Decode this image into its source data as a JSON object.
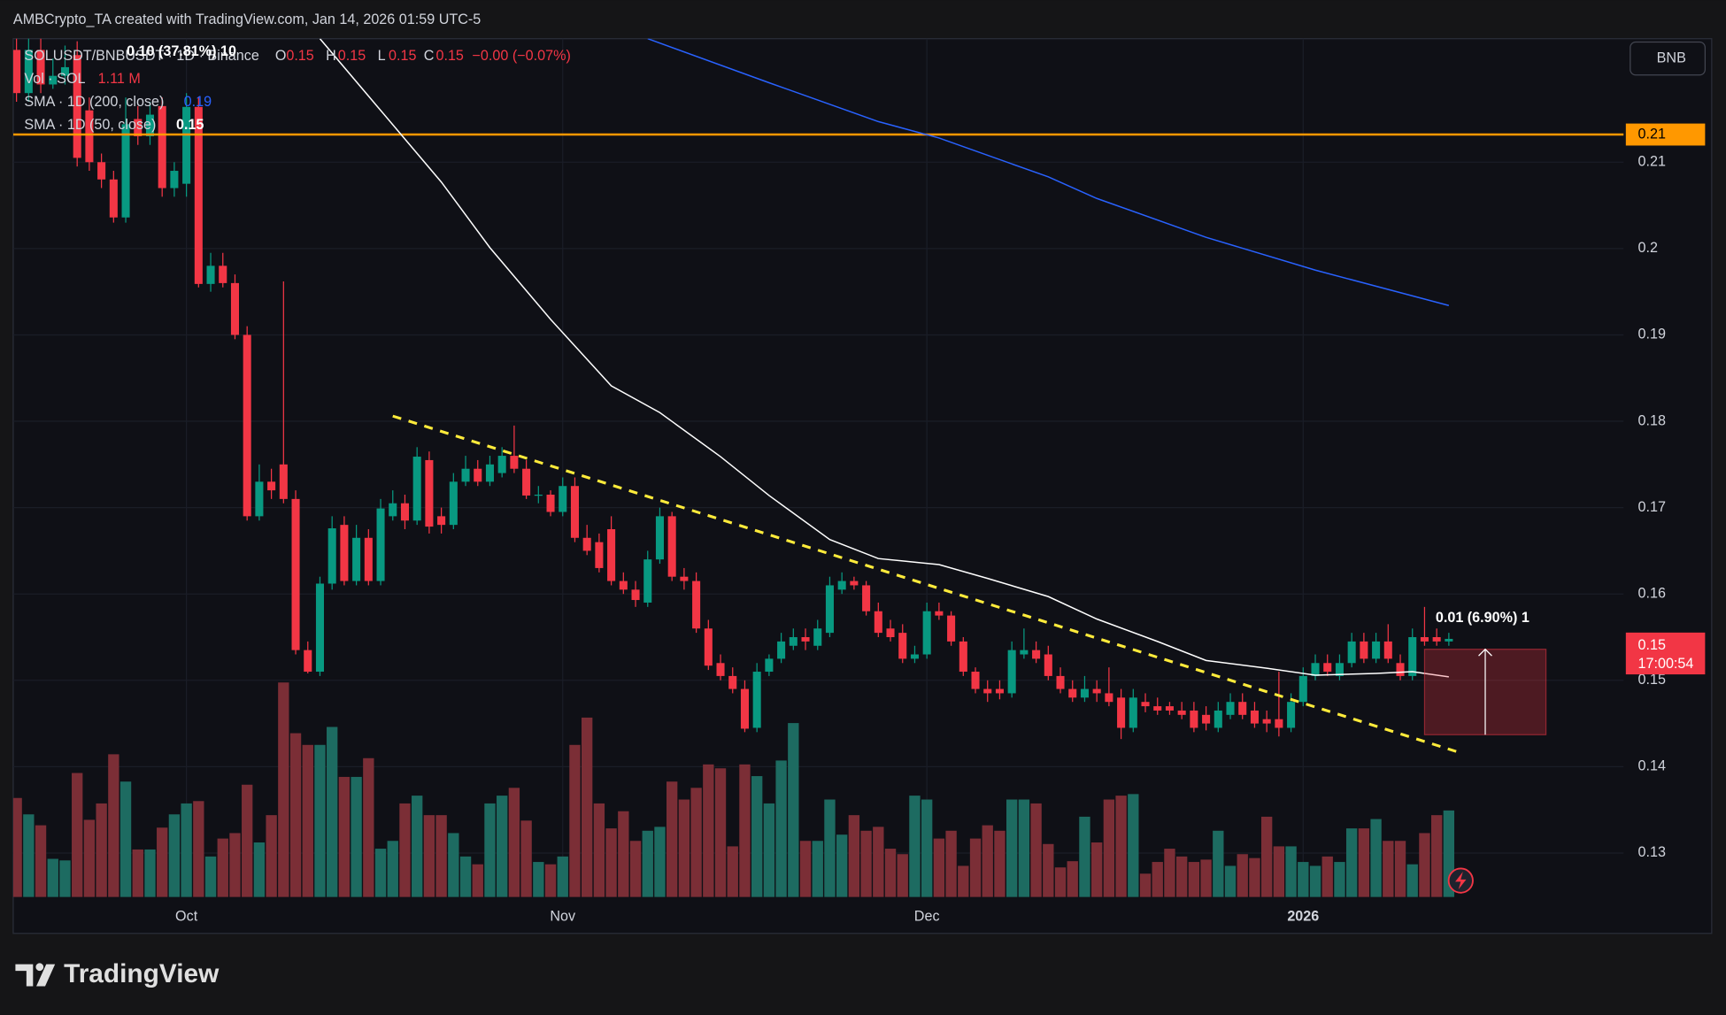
{
  "header": {
    "title": "AMBCrypto_TA created with TradingView.com, Jan 14, 2026 01:59 UTC-5"
  },
  "toolbar": {
    "symbol_button": "BNB"
  },
  "legend": {
    "symbol": "SOLUSDT/BNBUSDT · 1D · Binance",
    "overlay": "0.10 (37.81%) 10",
    "ohlc": [
      [
        "O",
        "0.15"
      ],
      [
        "H",
        "0.15"
      ],
      [
        "L",
        "0.15"
      ],
      [
        "C",
        "0.15"
      ]
    ],
    "change": "−0.00 (−0.07%)",
    "volume_label": "Vol · SOL",
    "volume_value": "1.11 M"
  },
  "footer": {
    "brand": "TradingView"
  },
  "chart_data": {
    "type": "candlestick",
    "xlim": [
      -0.27,
      132.4
    ],
    "xticks": [
      {
        "value": 14,
        "label": "Oct"
      },
      {
        "value": 45,
        "label": "Nov"
      },
      {
        "value": 75,
        "label": "Dec"
      },
      {
        "value": 106,
        "label": "2026"
      }
    ],
    "ylim": [
      0.1249,
      0.2243
    ],
    "yticks": [
      0.13,
      0.14,
      0.15,
      0.16,
      0.17,
      0.18,
      0.19,
      0.2,
      0.21
    ],
    "grid": true,
    "up_color": "#089981",
    "down_color": "#f23645",
    "volume_up_color": "#1d6b61",
    "volume_down_color": "#7b2e36",
    "volume_lim": [
      0,
      5.5
    ],
    "open": [
      0.223,
      0.218,
      0.223,
      0.219,
      0.22,
      0.2224,
      0.216,
      0.21,
      0.208,
      0.2036,
      0.215,
      0.213,
      0.2165,
      0.207,
      0.2075,
      0.2164,
      0.1959,
      0.198,
      0.196,
      0.19,
      0.169,
      0.173,
      0.175,
      0.171,
      0.1535,
      0.151,
      0.1612,
      0.168,
      0.1615,
      0.1665,
      0.1615,
      0.169,
      0.1705,
      0.1685,
      0.1755,
      0.169,
      0.168,
      0.173,
      0.1745,
      0.173,
      0.174,
      0.176,
      0.1745,
      0.1715,
      0.1715,
      0.1695,
      0.1725,
      0.1665,
      0.166,
      0.1675,
      0.1615,
      0.1605,
      0.159,
      0.164,
      0.169,
      0.162,
      0.1615,
      0.156,
      0.152,
      0.1505,
      0.149,
      0.1445,
      0.151,
      0.1525,
      0.154,
      0.155,
      0.154,
      0.1555,
      0.1605,
      0.1615,
      0.161,
      0.158,
      0.156,
      0.1555,
      0.1525,
      0.153,
      0.158,
      0.1575,
      0.1545,
      0.151,
      0.149,
      0.149,
      0.1485,
      0.153,
      0.1535,
      0.153,
      0.1505,
      0.149,
      0.148,
      0.149,
      0.1485,
      0.148,
      0.1445,
      0.1475,
      0.147,
      0.147,
      0.1465,
      0.1465,
      0.146,
      0.1445,
      0.146,
      0.1475,
      0.1465,
      0.1455,
      0.1455,
      0.1445,
      0.1475,
      0.1505,
      0.152,
      0.1505,
      0.152,
      0.1545,
      0.1525,
      0.1545,
      0.152,
      0.1505,
      0.155,
      0.155,
      0.1545
    ],
    "high": [
      0.225,
      0.2245,
      0.2245,
      0.222,
      0.2235,
      0.224,
      0.2175,
      0.211,
      0.209,
      0.2175,
      0.2165,
      0.217,
      0.2175,
      0.21,
      0.218,
      0.2175,
      0.1995,
      0.1995,
      0.197,
      0.191,
      0.175,
      0.1745,
      0.1962,
      0.172,
      0.1545,
      0.162,
      0.169,
      0.169,
      0.168,
      0.1675,
      0.171,
      0.172,
      0.1715,
      0.177,
      0.1765,
      0.17,
      0.174,
      0.176,
      0.1755,
      0.176,
      0.177,
      0.1795,
      0.1755,
      0.1725,
      0.172,
      0.1735,
      0.1735,
      0.168,
      0.167,
      0.169,
      0.1625,
      0.1615,
      0.165,
      0.17,
      0.1695,
      0.163,
      0.1625,
      0.157,
      0.153,
      0.1515,
      0.15,
      0.152,
      0.153,
      0.1555,
      0.156,
      0.156,
      0.157,
      0.162,
      0.1625,
      0.162,
      0.1615,
      0.159,
      0.157,
      0.1565,
      0.154,
      0.159,
      0.159,
      0.158,
      0.155,
      0.1515,
      0.15,
      0.15,
      0.1545,
      0.156,
      0.1545,
      0.154,
      0.1515,
      0.15,
      0.1505,
      0.15,
      0.1515,
      0.149,
      0.149,
      0.1485,
      0.148,
      0.1475,
      0.1475,
      0.1475,
      0.147,
      0.1475,
      0.1485,
      0.1485,
      0.1475,
      0.1465,
      0.151,
      0.1485,
      0.1515,
      0.153,
      0.153,
      0.153,
      0.1555,
      0.1555,
      0.1555,
      0.1565,
      0.153,
      0.156,
      0.1585,
      0.156,
      0.1555
    ],
    "low": [
      0.217,
      0.217,
      0.218,
      0.2185,
      0.219,
      0.2095,
      0.209,
      0.207,
      0.203,
      0.203,
      0.212,
      0.212,
      0.206,
      0.206,
      0.206,
      0.1955,
      0.195,
      0.1955,
      0.1895,
      0.1685,
      0.1685,
      0.171,
      0.1705,
      0.153,
      0.1508,
      0.1505,
      0.1605,
      0.161,
      0.161,
      0.161,
      0.161,
      0.1685,
      0.1675,
      0.168,
      0.167,
      0.167,
      0.1675,
      0.1725,
      0.1725,
      0.1725,
      0.1735,
      0.174,
      0.171,
      0.1705,
      0.169,
      0.169,
      0.166,
      0.1645,
      0.1625,
      0.161,
      0.16,
      0.1585,
      0.1585,
      0.1635,
      0.1615,
      0.1605,
      0.1555,
      0.1512,
      0.15,
      0.1485,
      0.144,
      0.144,
      0.1505,
      0.152,
      0.1535,
      0.1535,
      0.1535,
      0.155,
      0.16,
      0.1605,
      0.1575,
      0.155,
      0.1545,
      0.152,
      0.152,
      0.1525,
      0.157,
      0.154,
      0.1505,
      0.1485,
      0.1475,
      0.1478,
      0.148,
      0.1525,
      0.152,
      0.15,
      0.1485,
      0.1475,
      0.1475,
      0.1475,
      0.147,
      0.1432,
      0.144,
      0.1463,
      0.146,
      0.146,
      0.1455,
      0.144,
      0.1442,
      0.144,
      0.1455,
      0.1455,
      0.1445,
      0.144,
      0.1435,
      0.144,
      0.147,
      0.15,
      0.1505,
      0.15,
      0.1515,
      0.152,
      0.152,
      0.152,
      0.15,
      0.15,
      0.154,
      0.154,
      0.154
    ],
    "close": [
      0.218,
      0.223,
      0.219,
      0.22,
      0.221,
      0.2105,
      0.21,
      0.208,
      0.2036,
      0.2144,
      0.213,
      0.2155,
      0.207,
      0.209,
      0.2164,
      0.1959,
      0.198,
      0.196,
      0.19,
      0.169,
      0.173,
      0.172,
      0.171,
      0.1535,
      0.151,
      0.1612,
      0.1676,
      0.1615,
      0.1665,
      0.1615,
      0.1699,
      0.1705,
      0.1685,
      0.1759,
      0.1678,
      0.168,
      0.173,
      0.1745,
      0.173,
      0.175,
      0.176,
      0.1745,
      0.1714,
      0.1715,
      0.1695,
      0.1725,
      0.1665,
      0.165,
      0.163,
      0.1615,
      0.1605,
      0.1593,
      0.164,
      0.169,
      0.162,
      0.1615,
      0.156,
      0.1517,
      0.1505,
      0.149,
      0.1444,
      0.151,
      0.1525,
      0.1545,
      0.155,
      0.1545,
      0.156,
      0.161,
      0.1615,
      0.161,
      0.158,
      0.1555,
      0.155,
      0.1525,
      0.153,
      0.158,
      0.1575,
      0.1545,
      0.151,
      0.149,
      0.1485,
      0.1485,
      0.1535,
      0.1535,
      0.1525,
      0.1505,
      0.149,
      0.148,
      0.149,
      0.1485,
      0.1475,
      0.1445,
      0.148,
      0.147,
      0.1465,
      0.1465,
      0.146,
      0.1445,
      0.145,
      0.1465,
      0.1475,
      0.146,
      0.145,
      0.145,
      0.1445,
      0.1475,
      0.1505,
      0.152,
      0.151,
      0.152,
      0.1545,
      0.1525,
      0.1545,
      0.1525,
      0.1505,
      0.155,
      0.1545,
      0.1545,
      0.1548
    ],
    "volume": [
      1.27,
      1.06,
      0.92,
      0.49,
      0.47,
      1.59,
      0.99,
      1.2,
      1.83,
      1.48,
      0.61,
      0.61,
      0.89,
      1.06,
      1.2,
      1.23,
      0.52,
      0.75,
      0.82,
      1.44,
      0.7,
      1.05,
      2.75,
      2.1,
      1.95,
      1.95,
      2.18,
      1.54,
      1.54,
      1.78,
      0.62,
      0.72,
      1.2,
      1.3,
      1.05,
      1.05,
      0.82,
      0.52,
      0.42,
      1.2,
      1.3,
      1.4,
      0.98,
      0.45,
      0.42,
      0.52,
      1.95,
      2.3,
      1.2,
      0.88,
      1.1,
      0.72,
      0.85,
      0.9,
      1.48,
      1.25,
      1.4,
      1.7,
      1.65,
      0.65,
      1.7,
      1.55,
      1.2,
      1.75,
      2.23,
      0.72,
      0.72,
      1.25,
      0.8,
      1.05,
      0.85,
      0.9,
      0.62,
      0.55,
      1.3,
      1.25,
      0.75,
      0.85,
      0.4,
      0.75,
      0.92,
      0.85,
      1.25,
      1.25,
      1.2,
      0.68,
      0.38,
      0.46,
      1.03,
      0.7,
      1.25,
      1.3,
      1.32,
      0.3,
      0.45,
      0.62,
      0.52,
      0.45,
      0.48,
      0.85,
      0.4,
      0.55,
      0.5,
      1.03,
      0.65,
      0.65,
      0.45,
      0.4,
      0.52,
      0.45,
      0.88,
      0.88,
      1.0,
      0.72,
      0.72,
      0.42,
      0.82,
      1.05,
      1.11
    ],
    "lines": [
      {
        "name": "SMA · 1D (200, close)",
        "color": "#2962ff",
        "last_value_label": "0.19",
        "x": [
          52,
          62,
          71,
          76,
          85,
          89,
          98,
          107,
          118
        ],
        "values": [
          0.2243,
          0.2192,
          0.2147,
          0.2128,
          0.2083,
          0.2058,
          0.2013,
          0.1975,
          0.1934
        ]
      },
      {
        "name": "SMA · 1D (50, close)",
        "color": "#ffffff",
        "last_value_label": "0.15",
        "x": [
          25,
          30,
          35,
          39,
          44,
          49,
          53,
          58,
          62,
          67,
          71,
          76,
          80,
          85,
          89,
          94,
          98,
          103,
          107,
          112,
          115,
          118
        ],
        "values": [
          0.2243,
          0.216,
          0.2077,
          0.2001,
          0.1918,
          0.1841,
          0.181,
          0.1759,
          0.1714,
          0.1663,
          0.1641,
          0.1634,
          0.1618,
          0.1597,
          0.1571,
          0.1545,
          0.1523,
          0.1514,
          0.1506,
          0.1508,
          0.151,
          0.1504
        ]
      }
    ],
    "trendline": {
      "color": "#ffeb3b",
      "x": [
        31.0,
        119.2
      ],
      "values": [
        0.1806,
        0.1415
      ]
    },
    "hline": {
      "value": 0.2132,
      "label": "0.21",
      "color": "#ff9800"
    },
    "price_tag": {
      "value": 0.154,
      "label": "0.15",
      "countdown": "17:00:54",
      "color": "#f23645"
    },
    "measure": {
      "x": [
        116,
        126
      ],
      "values": [
        0.1437,
        0.1536
      ],
      "label": "0.01 (6.90%) 1"
    }
  }
}
